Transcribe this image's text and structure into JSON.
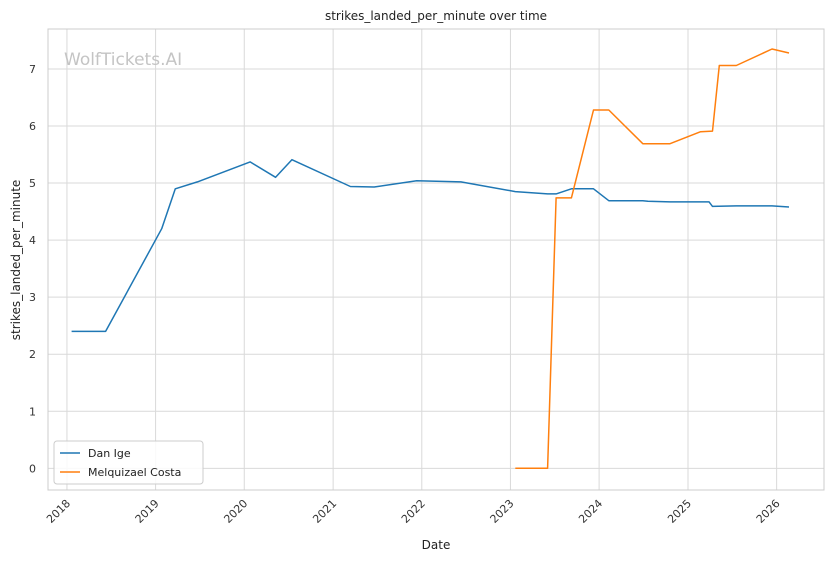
{
  "chart_data": {
    "type": "line",
    "title": "strikes_landed_per_minute over time",
    "xlabel": "Date",
    "ylabel": "strikes_landed_per_minute",
    "watermark": "WolfTickets.AI",
    "x_ticks": [
      "2018",
      "2019",
      "2020",
      "2021",
      "2022",
      "2023",
      "2024",
      "2025",
      "2026"
    ],
    "y_ticks": [
      "0",
      "1",
      "2",
      "3",
      "4",
      "5",
      "6",
      "7"
    ],
    "xlim": [
      "2017-10-15",
      "2026-07-15"
    ],
    "ylim": [
      -0.38,
      7.7
    ],
    "grid": true,
    "legend_position": "lower-left",
    "series": [
      {
        "name": "Dan Ige",
        "color": "#1f77b4",
        "points": [
          [
            "2018-01-20",
            2.4
          ],
          [
            "2018-06-09",
            2.4
          ],
          [
            "2019-01-26",
            4.2
          ],
          [
            "2019-03-23",
            4.9
          ],
          [
            "2019-06-22",
            5.02
          ],
          [
            "2020-01-25",
            5.37
          ],
          [
            "2020-05-09",
            5.1
          ],
          [
            "2020-07-15",
            5.41
          ],
          [
            "2021-03-13",
            4.94
          ],
          [
            "2021-06-19",
            4.93
          ],
          [
            "2021-12-11",
            5.04
          ],
          [
            "2022-06-11",
            5.02
          ],
          [
            "2023-01-21",
            4.85
          ],
          [
            "2023-06-03",
            4.81
          ],
          [
            "2023-07-08",
            4.81
          ],
          [
            "2023-09-09",
            4.9
          ],
          [
            "2023-12-09",
            4.9
          ],
          [
            "2024-02-10",
            4.69
          ],
          [
            "2024-06-29",
            4.69
          ],
          [
            "2024-07-20",
            4.68
          ],
          [
            "2024-10-19",
            4.67
          ],
          [
            "2025-03-29",
            4.67
          ],
          [
            "2025-04-12",
            4.59
          ],
          [
            "2025-07-19",
            4.6
          ],
          [
            "2025-12-13",
            4.6
          ],
          [
            "2026-02-21",
            4.58
          ]
        ]
      },
      {
        "name": "Melquizael Costa",
        "color": "#ff7f0e",
        "points": [
          [
            "2023-01-21",
            0.0
          ],
          [
            "2023-06-03",
            0.0
          ],
          [
            "2023-07-08",
            4.74
          ],
          [
            "2023-09-09",
            4.74
          ],
          [
            "2023-12-09",
            6.28
          ],
          [
            "2024-02-10",
            6.28
          ],
          [
            "2024-06-29",
            5.69
          ],
          [
            "2024-10-19",
            5.69
          ],
          [
            "2025-02-22",
            5.9
          ],
          [
            "2025-04-12",
            5.91
          ],
          [
            "2025-05-10",
            7.06
          ],
          [
            "2025-07-19",
            7.06
          ],
          [
            "2025-12-13",
            7.35
          ],
          [
            "2026-02-21",
            7.28
          ]
        ]
      }
    ]
  }
}
